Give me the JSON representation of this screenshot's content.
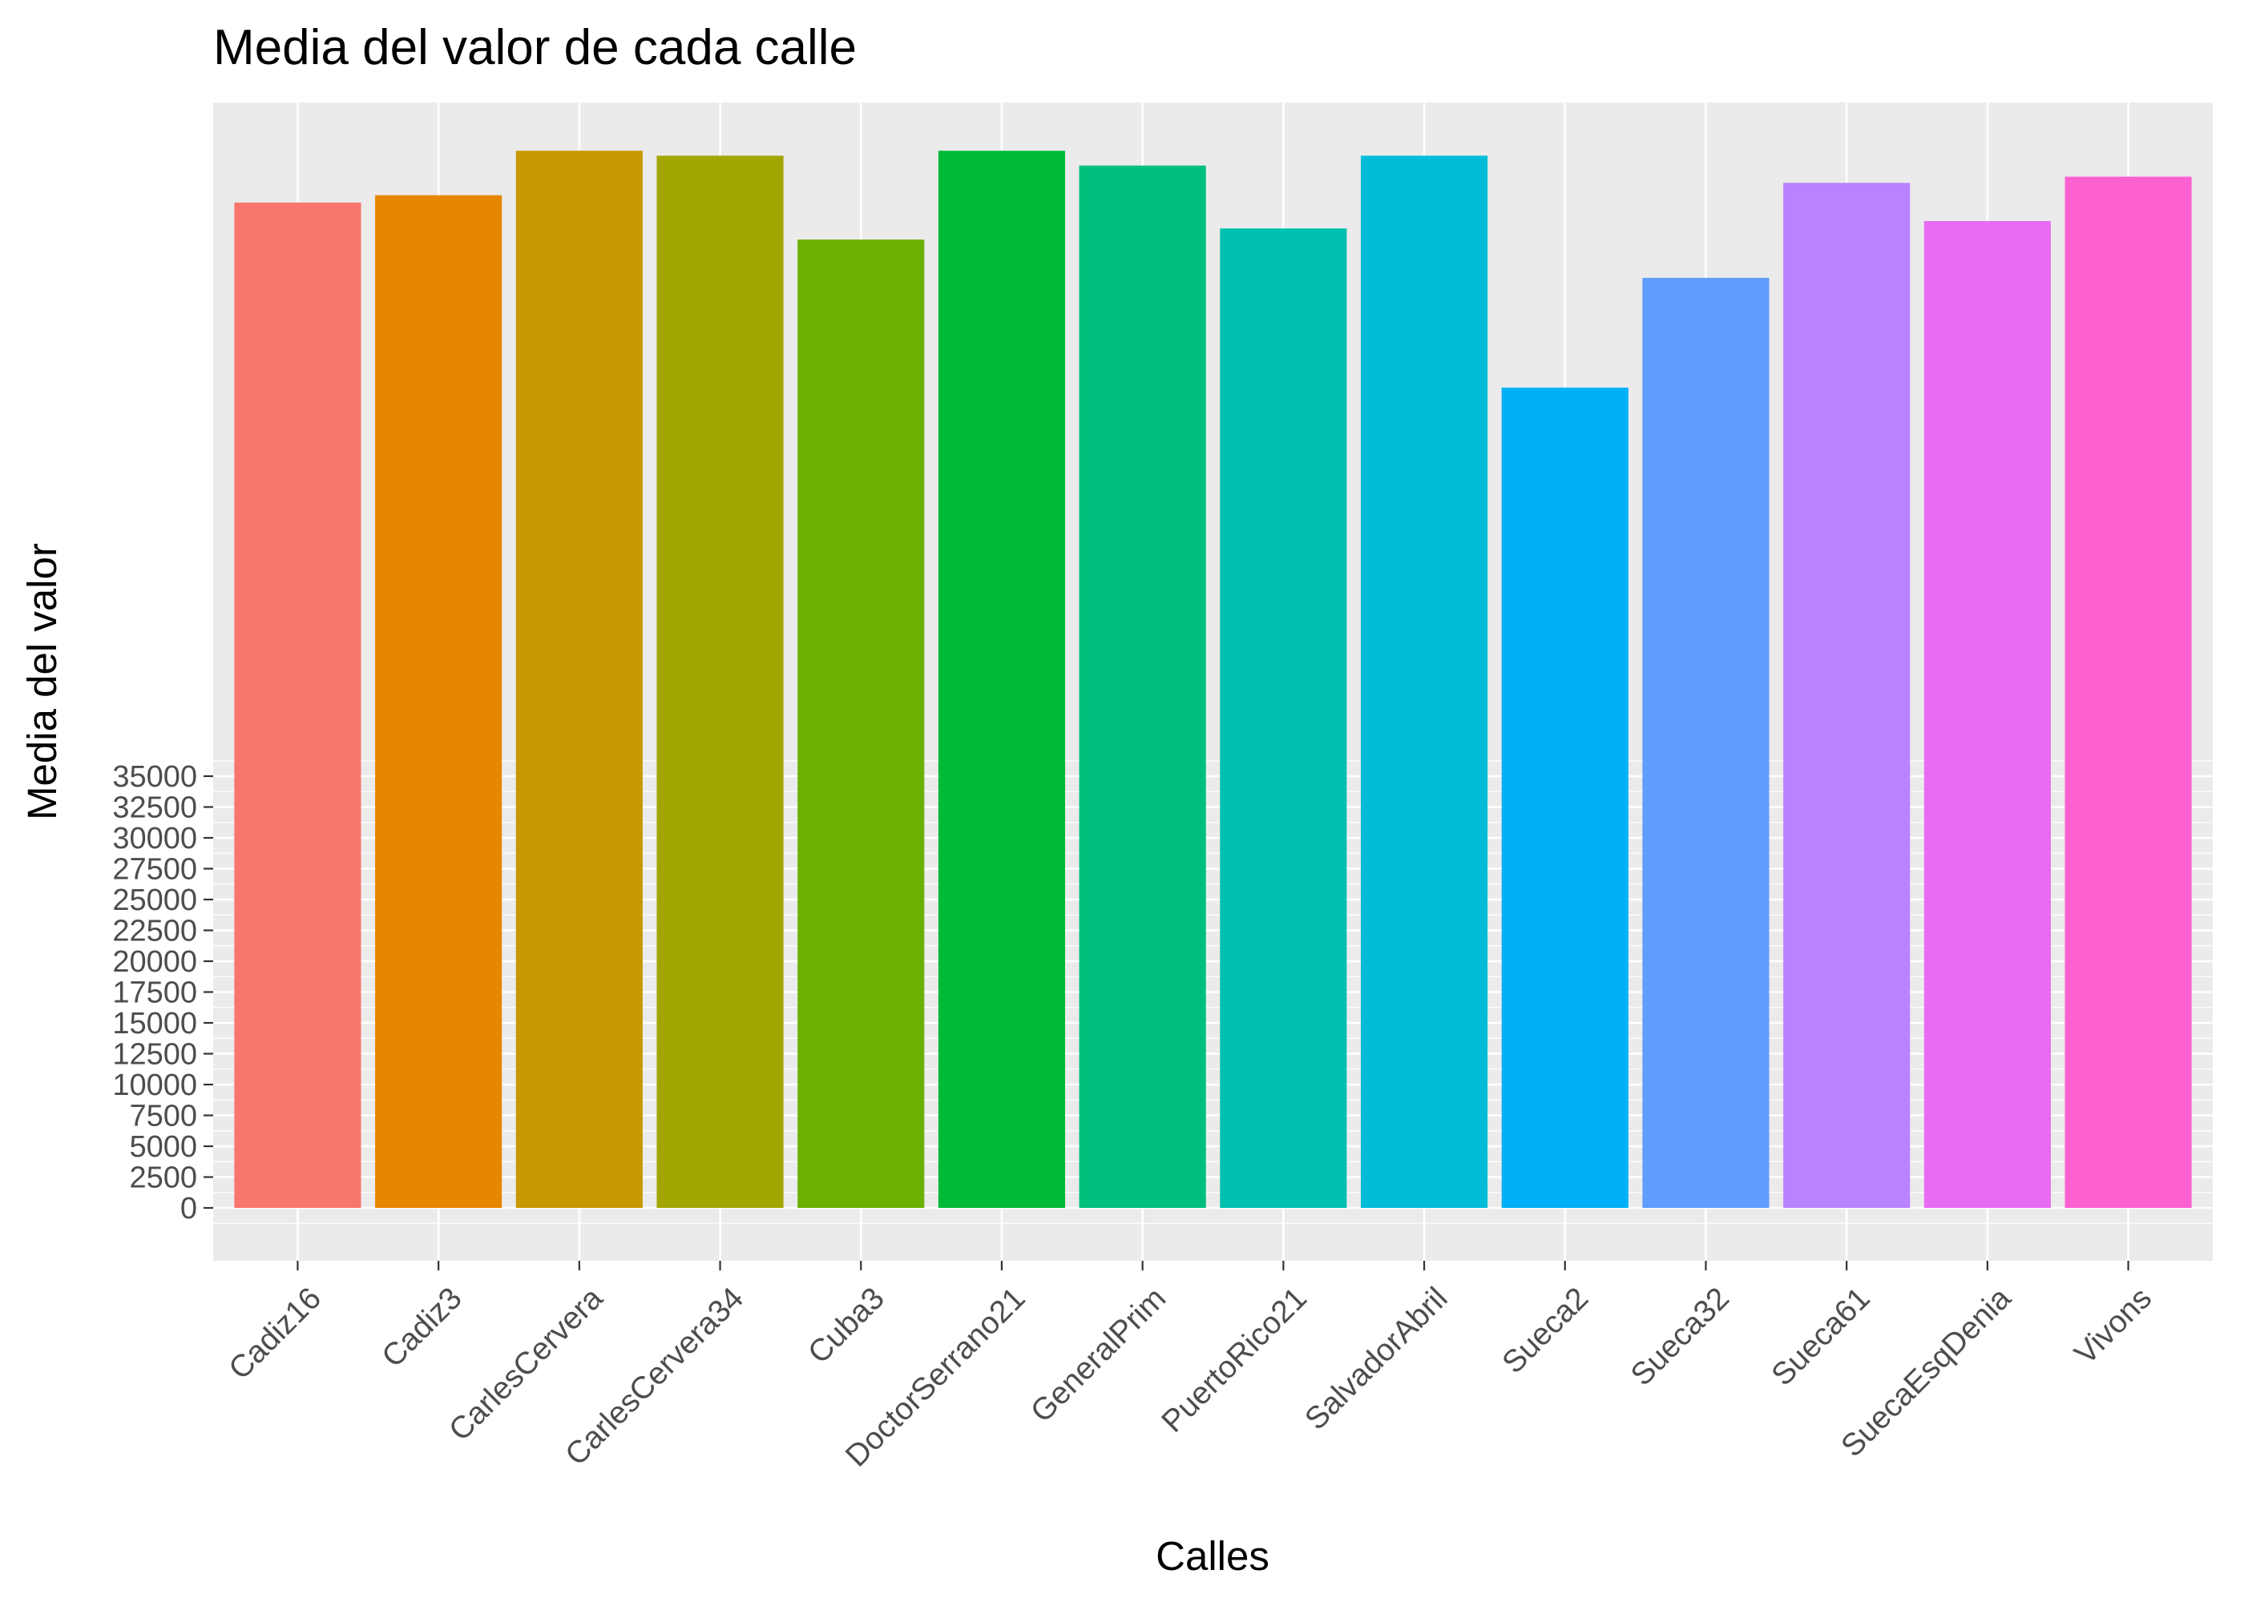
{
  "chart_data": {
    "type": "bar",
    "title": "Media del valor de cada calle",
    "xlabel": "Calles",
    "ylabel": "Media del valor",
    "categories": [
      "Cadiz16",
      "Cadiz3",
      "CarlesCervera",
      "CarlesCervera34",
      "Cuba3",
      "DoctorSerrano21",
      "GeneralPrim",
      "PuertoRico21",
      "SalvadorAbril",
      "Sueca2",
      "Sueca32",
      "Sueca61",
      "SuecaEsqDenia",
      "Vivons"
    ],
    "values": [
      81500,
      82100,
      85700,
      85300,
      78500,
      85700,
      84500,
      79400,
      85300,
      66500,
      75400,
      83100,
      80000,
      83600
    ],
    "colors": [
      "#F8766D",
      "#E58700",
      "#C99800",
      "#A3A500",
      "#6BB100",
      "#00BA38",
      "#00BF7D",
      "#00C0AF",
      "#00BCD8",
      "#00B0F6",
      "#619CFF",
      "#B983FF",
      "#E76BF3",
      "#FD61D1"
    ],
    "ylim": [
      -4000,
      90000
    ],
    "yticks": [
      0,
      2500,
      5000,
      7500,
      10000,
      12500,
      15000,
      17500,
      20000,
      22500,
      25000,
      27500,
      30000,
      32500,
      35000
    ],
    "ytick_labels": [
      "0",
      "2500",
      "5000",
      "7500",
      "10000",
      "12500",
      "15000",
      "17500",
      "20000",
      "22500",
      "25000",
      "27500",
      "30000",
      "32500",
      "35000"
    ],
    "grid": true,
    "legend": "none"
  }
}
